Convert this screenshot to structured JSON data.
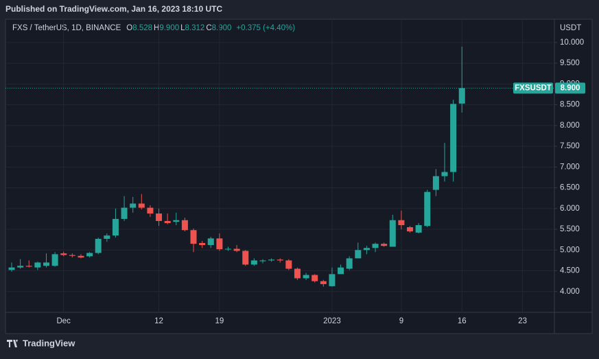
{
  "published": "Published on TradingView.com, Jan 16, 2023 18:10 UTC",
  "brand": "TradingView",
  "chart_data": {
    "type": "candlestick",
    "title": "FXS / TetherUS, 1D, BINANCE",
    "legend": {
      "o_label": "O",
      "o": "8.528",
      "h_label": "H",
      "h": "9.900",
      "l_label": "L",
      "l": "8.312",
      "c_label": "C",
      "c": "8.900",
      "change": "+0.375 (+4.40%)"
    },
    "y_unit": "USDT",
    "up_color": "#26a69a",
    "down_color": "#ef5350",
    "grid": true,
    "categories": [
      null,
      null,
      null,
      null,
      null,
      null,
      "Dec",
      null,
      null,
      null,
      null,
      null,
      null,
      null,
      null,
      null,
      null,
      "12",
      null,
      null,
      null,
      null,
      null,
      null,
      "19",
      null,
      null,
      null,
      null,
      null,
      null,
      null,
      null,
      null,
      null,
      null,
      null,
      "2023",
      null,
      null,
      null,
      null,
      null,
      null,
      null,
      "9",
      null,
      null,
      null,
      null,
      null,
      null,
      "16",
      null,
      null,
      null,
      null,
      null,
      null,
      "23",
      null,
      null,
      null
    ],
    "open": [
      4.52,
      4.58,
      4.62,
      4.58,
      4.62,
      4.62,
      4.92,
      4.88,
      4.86,
      4.85,
      4.93,
      5.27,
      5.35,
      5.75,
      6.02,
      6.12,
      6.02,
      5.88,
      5.7,
      5.68,
      5.72,
      5.48,
      5.17,
      5.12,
      5.28,
      5.02,
      5.03,
      4.98,
      4.65,
      4.73,
      4.75,
      4.77,
      4.75,
      4.55,
      4.32,
      4.4,
      4.25,
      4.13,
      4.42,
      4.55,
      4.8,
      5.0,
      5.05,
      5.15,
      5.08,
      5.72,
      5.55,
      5.42,
      5.58,
      6.45,
      6.78,
      6.88,
      8.528,
      null,
      null,
      null,
      null,
      null,
      null,
      null,
      null,
      null,
      null
    ],
    "high": [
      4.7,
      4.78,
      4.75,
      4.72,
      4.92,
      4.95,
      4.96,
      4.92,
      4.9,
      4.95,
      5.3,
      5.4,
      6.0,
      6.3,
      6.28,
      6.35,
      6.08,
      6.0,
      5.88,
      5.9,
      5.78,
      5.52,
      5.22,
      5.32,
      5.4,
      5.08,
      5.12,
      5.0,
      4.8,
      4.78,
      4.8,
      4.8,
      4.78,
      4.58,
      4.45,
      4.42,
      4.28,
      4.58,
      4.65,
      4.85,
      5.18,
      5.1,
      5.18,
      5.18,
      5.85,
      5.95,
      5.58,
      5.65,
      6.45,
      6.95,
      7.58,
      8.62,
      9.9,
      null,
      null,
      null,
      null,
      null,
      null,
      null,
      null,
      null,
      null
    ],
    "low": [
      4.48,
      4.55,
      4.58,
      4.52,
      4.58,
      4.6,
      4.85,
      4.82,
      4.8,
      4.82,
      4.9,
      5.2,
      5.3,
      5.7,
      5.9,
      5.98,
      5.8,
      5.58,
      5.62,
      5.6,
      5.45,
      4.95,
      5.05,
      5.05,
      4.98,
      4.98,
      4.95,
      4.62,
      4.62,
      4.68,
      4.72,
      4.7,
      4.52,
      4.28,
      4.28,
      4.22,
      4.12,
      4.12,
      4.42,
      4.52,
      4.8,
      4.9,
      4.95,
      5.08,
      5.08,
      5.5,
      5.42,
      5.4,
      5.55,
      6.3,
      6.65,
      6.65,
      8.312,
      null,
      null,
      null,
      null,
      null,
      null,
      null,
      null,
      null,
      null
    ],
    "close": [
      4.58,
      4.62,
      4.6,
      4.7,
      4.7,
      4.9,
      4.88,
      4.86,
      4.82,
      4.93,
      5.27,
      5.35,
      5.75,
      6.02,
      6.12,
      6.02,
      5.88,
      5.7,
      5.65,
      5.72,
      5.48,
      5.15,
      5.12,
      5.28,
      5.02,
      5.03,
      4.98,
      4.65,
      4.75,
      4.75,
      4.77,
      4.75,
      4.55,
      4.32,
      4.4,
      4.25,
      4.18,
      4.42,
      4.58,
      4.8,
      5.0,
      5.05,
      5.15,
      5.1,
      5.72,
      5.6,
      5.45,
      5.6,
      6.4,
      6.78,
      6.88,
      8.52,
      8.9,
      null,
      null,
      null,
      null,
      null,
      null,
      null,
      null,
      null,
      null
    ],
    "last_price": 8.9,
    "last_price_label": "8.900",
    "last_price_symbol": "FXSUSDT",
    "ylim": [
      3.5,
      10.56
    ],
    "yticks": [
      {
        "value": 4,
        "label": "4.000"
      },
      {
        "value": 4.5,
        "label": "4.500"
      },
      {
        "value": 5,
        "label": "5.000"
      },
      {
        "value": 5.5,
        "label": "5.500"
      },
      {
        "value": 6,
        "label": "6.000"
      },
      {
        "value": 6.5,
        "label": "6.500"
      },
      {
        "value": 7,
        "label": "7.000"
      },
      {
        "value": 7.5,
        "label": "7.500"
      },
      {
        "value": 8,
        "label": "8.000"
      },
      {
        "value": 8.5,
        "label": "8.500"
      },
      {
        "value": 9,
        "label": "9.000"
      },
      {
        "value": 9.5,
        "label": "9.500"
      },
      {
        "value": 10,
        "label": "10.000"
      }
    ]
  }
}
